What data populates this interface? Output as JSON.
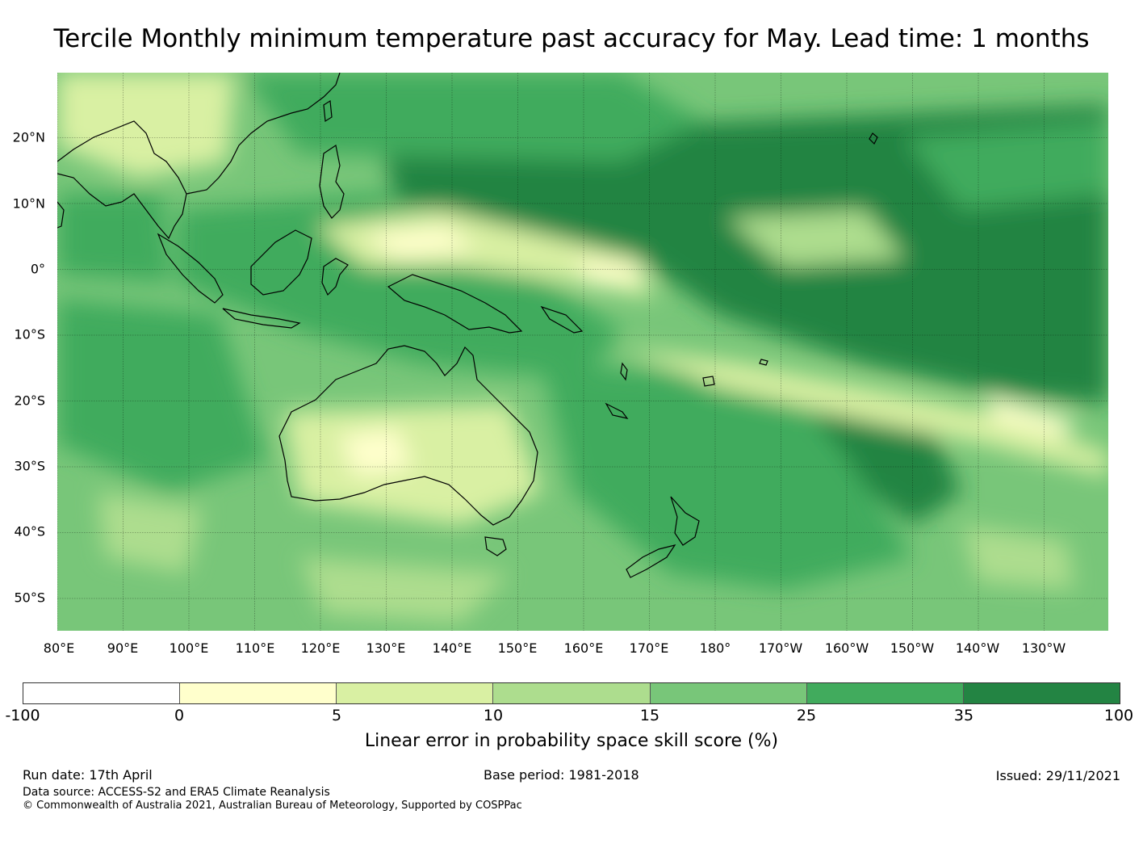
{
  "title": "Tercile Monthly minimum temperature past accuracy for May. Lead time: 1 months",
  "map": {
    "lat_labels": [
      "20°N",
      "10°N",
      "0°",
      "10°S",
      "20°S",
      "30°S",
      "40°S",
      "50°S"
    ],
    "lon_labels": [
      "80°E",
      "90°E",
      "100°E",
      "110°E",
      "120°E",
      "130°E",
      "140°E",
      "150°E",
      "160°E",
      "170°E",
      "180°",
      "170°W",
      "160°W",
      "150°W",
      "140°W",
      "130°W"
    ]
  },
  "colorbar": {
    "ticks": [
      "-100",
      "0",
      "5",
      "10",
      "15",
      "25",
      "35",
      "100"
    ],
    "colors": [
      "#ffffff",
      "#ffffcc",
      "#d9f0a3",
      "#addd8e",
      "#78c679",
      "#41ab5d",
      "#238443"
    ],
    "label": "Linear error in probability space skill score (%)"
  },
  "footer": {
    "run_date": "Run date: 17th April",
    "base_period": "Base period: 1981-2018",
    "issued": "Issued: 29/11/2021",
    "data_source": "Data source: ACCESS-S2 and ERA5 Climate Reanalysis",
    "copyright": "© Commonwealth of Australia 2021, Australian Bureau of Meteorology, Supported by COSPPac"
  }
}
